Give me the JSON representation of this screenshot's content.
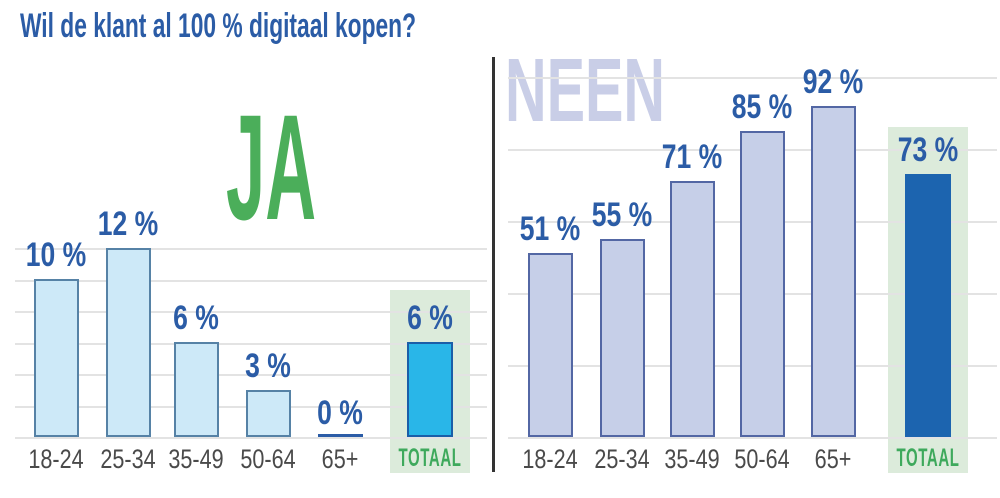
{
  "title": "Wil de klant al 100 % digitaal kopen?",
  "unit": "%",
  "chart_data": [
    {
      "id": "ja",
      "type": "bar",
      "group_label": "JA",
      "categories": [
        "18-24",
        "25-34",
        "35-49",
        "50-64",
        "65+"
      ],
      "values": [
        10,
        12,
        6,
        3,
        0
      ],
      "total": {
        "label": "TOTAAL",
        "value": 6
      },
      "ylim": [
        0,
        12
      ],
      "grid_step": 2,
      "grid_on": true,
      "value_labels": [
        "10 %",
        "12 %",
        "6 %",
        "3 %",
        "0 %"
      ],
      "total_value_label": "6 %"
    },
    {
      "id": "neen",
      "type": "bar",
      "group_label": "NEEN",
      "categories": [
        "18-24",
        "25-34",
        "35-49",
        "50-64",
        "65+"
      ],
      "values": [
        51,
        55,
        71,
        85,
        92
      ],
      "total": {
        "label": "TOTAAL",
        "value": 73
      },
      "ylim": [
        0,
        100
      ],
      "grid_step": 20,
      "grid_on": true,
      "value_labels": [
        "51 %",
        "55 %",
        "71 %",
        "85 %",
        "92 %"
      ],
      "total_value_label": "73 %"
    }
  ],
  "colors": {
    "title_blue": "#2B5CA6",
    "ja_green": "#4BAE5A",
    "neen_lavender": "#C9CEE7",
    "ja_fill": "#CDE9F8",
    "ja_border": "#5682A6",
    "neen_fill": "#C6CFE8",
    "neen_border": "#5367A4",
    "ja_total_fill": "#29B6E8",
    "ja_total_border": "#1A5EA8",
    "neen_total_fill": "#1C64AF",
    "panel_green": "#DCEBDB",
    "total_label_green": "#3EA95C",
    "category_gray": "#4A4A4A",
    "gridline": "#E3E3E3",
    "divider": "#333333"
  }
}
